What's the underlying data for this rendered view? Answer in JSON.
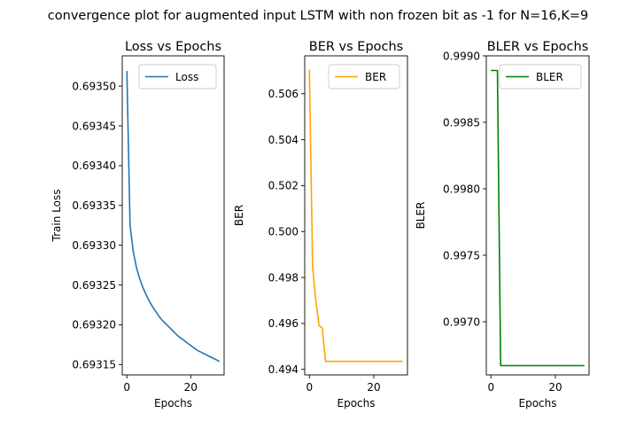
{
  "figure": {
    "suptitle": "convergence plot for augmented input LSTM with non frozen bit as -1 for N=16,K=9"
  },
  "chart_data": [
    {
      "type": "line",
      "title": "Loss vs Epochs",
      "xlabel": "Epochs",
      "ylabel": "Train Loss",
      "xlim": [
        -1.45,
        30.45
      ],
      "ylim": [
        0.693137,
        0.693538
      ],
      "xticks": [
        0,
        20
      ],
      "yticks": [
        0.69315,
        0.6932,
        0.69325,
        0.6933,
        0.69335,
        0.6934,
        0.69345,
        0.6935
      ],
      "ytick_labels": [
        "0.69315",
        "0.69320",
        "0.69325",
        "0.69330",
        "0.69335",
        "0.69340",
        "0.69345",
        "0.69350"
      ],
      "grid": false,
      "legend_position": "upper-right",
      "series": [
        {
          "name": "Loss",
          "color": "#1f77b4",
          "x": [
            0,
            1,
            2,
            3,
            4,
            5,
            6,
            7,
            8,
            9,
            10,
            11,
            12,
            13,
            14,
            15,
            16,
            17,
            18,
            19,
            20,
            21,
            22,
            23,
            24,
            25,
            26,
            27,
            28,
            29
          ],
          "y": [
            0.693519,
            0.693325,
            0.693292,
            0.693272,
            0.693258,
            0.693247,
            0.693238,
            0.69323,
            0.693223,
            0.693217,
            0.693211,
            0.693206,
            0.693202,
            0.693198,
            0.693194,
            0.69319,
            0.693186,
            0.693183,
            0.69318,
            0.693177,
            0.693174,
            0.693171,
            0.693168,
            0.693166,
            0.693164,
            0.693162,
            0.69316,
            0.693158,
            0.693156,
            0.693154
          ]
        }
      ]
    },
    {
      "type": "line",
      "title": "BER vs Epochs",
      "xlabel": "Epochs",
      "ylabel": "BER",
      "xlim": [
        -1.45,
        30.45
      ],
      "ylim": [
        0.49376,
        0.50765
      ],
      "xticks": [
        0,
        20
      ],
      "yticks": [
        0.494,
        0.496,
        0.498,
        0.5,
        0.502,
        0.504,
        0.506
      ],
      "ytick_labels": [
        "0.494",
        "0.496",
        "0.498",
        "0.500",
        "0.502",
        "0.504",
        "0.506"
      ],
      "grid": false,
      "legend_position": "upper-right",
      "series": [
        {
          "name": "BER",
          "color": "#ffa500",
          "x": [
            0,
            1,
            2,
            3,
            4,
            5,
            6,
            7,
            8,
            9,
            10,
            11,
            12,
            13,
            14,
            15,
            16,
            17,
            18,
            19,
            20,
            21,
            22,
            23,
            24,
            25,
            26,
            27,
            28,
            29
          ],
          "y": [
            0.50705,
            0.49845,
            0.497,
            0.4959,
            0.4958,
            0.49435,
            0.49435,
            0.49435,
            0.49435,
            0.49435,
            0.49435,
            0.49435,
            0.49435,
            0.49435,
            0.49435,
            0.49435,
            0.49435,
            0.49435,
            0.49435,
            0.49435,
            0.49435,
            0.49435,
            0.49435,
            0.49435,
            0.49435,
            0.49435,
            0.49435,
            0.49435,
            0.49435,
            0.49435
          ]
        }
      ]
    },
    {
      "type": "line",
      "title": "BLER vs Epochs",
      "xlabel": "Epochs",
      "ylabel": "BLER",
      "xlim": [
        -1.45,
        30.45
      ],
      "ylim": [
        0.9966,
        0.999
      ],
      "xticks": [
        0,
        20
      ],
      "yticks": [
        0.997,
        0.9975,
        0.998,
        0.9985,
        0.999
      ],
      "ytick_labels": [
        "0.9970",
        "0.9975",
        "0.9980",
        "0.9985",
        "0.9990"
      ],
      "grid": false,
      "legend_position": "upper-right",
      "series": [
        {
          "name": "BLER",
          "color": "#008000",
          "x": [
            0,
            1,
            2,
            3,
            4,
            5,
            6,
            7,
            8,
            9,
            10,
            11,
            12,
            13,
            14,
            15,
            16,
            17,
            18,
            19,
            20,
            21,
            22,
            23,
            24,
            25,
            26,
            27,
            28,
            29
          ],
          "y": [
            0.99889,
            0.99889,
            0.99889,
            0.99667,
            0.99667,
            0.99667,
            0.99667,
            0.99667,
            0.99667,
            0.99667,
            0.99667,
            0.99667,
            0.99667,
            0.99667,
            0.99667,
            0.99667,
            0.99667,
            0.99667,
            0.99667,
            0.99667,
            0.99667,
            0.99667,
            0.99667,
            0.99667,
            0.99667,
            0.99667,
            0.99667,
            0.99667,
            0.99667,
            0.99667
          ]
        }
      ]
    }
  ]
}
